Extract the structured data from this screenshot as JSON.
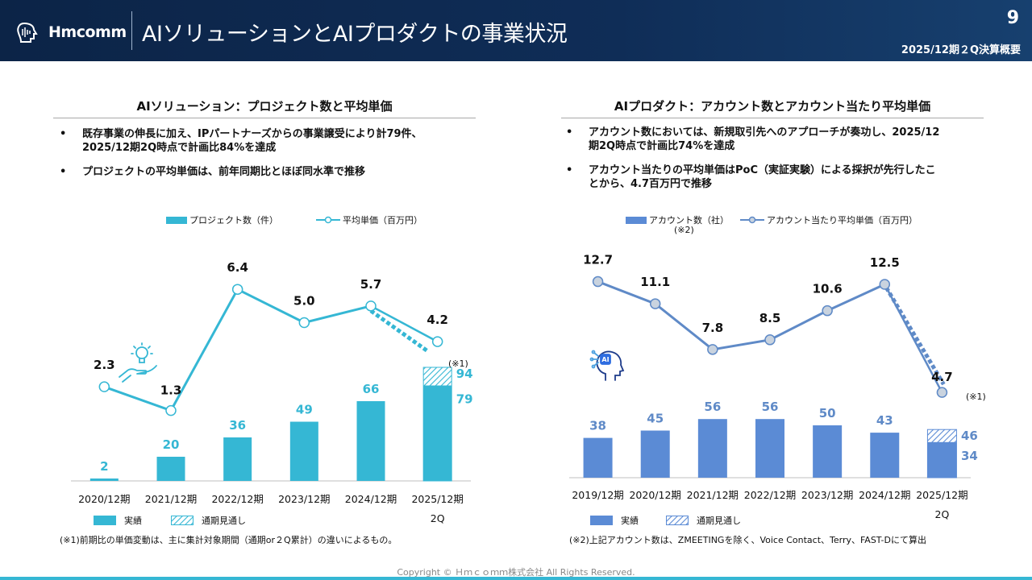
{
  "header": {
    "logo_text": "Hmcomm",
    "title": "AIソリューションとAIプロダクトの事業状況",
    "page_number": "9",
    "subtitle": "2025/12期２Q決算概要"
  },
  "left": {
    "title": "AIソリューション：プロジェクト数と平均単価",
    "bullets": [
      {
        "marker": "•",
        "lines": [
          "既存事業の伸長に加え、IPパートナーズからの事業譲受により計79件、",
          "2025/12期2Q時点で計画比84%を達成"
        ]
      },
      {
        "marker": "•",
        "lines": [
          "プロジェクトの平均単価は、前年同期比とほぼ同水準で推移"
        ]
      }
    ],
    "legend_bar": "プロジェクト数（件）",
    "legend_line": "平均単価（百万円）",
    "legend_actual": "実績",
    "legend_forecast": "通期見通し",
    "note": "(※1)前期比の単価変動は、主に集計対象期間（通期or２Q累計）の違いによるもの。",
    "marker_note": "(※1)",
    "period_sublabel": "2Q"
  },
  "right": {
    "title": "AIプロダクト：アカウント数とアカウント当たり平均単価",
    "bullets": [
      {
        "marker": "•",
        "lines": [
          "アカウント数においては、新規取引先へのアプローチが奏功し、2025/12",
          "期2Q時点で計画比74%を達成"
        ]
      },
      {
        "marker": "•",
        "lines": [
          "アカウント当たりの平均単価はPoC（実証実験）による採択が先行したこ",
          "とから、4.7百万円で推移"
        ]
      }
    ],
    "legend_bar": "アカウント数（社）",
    "legend_bar_sub": "(※2)",
    "legend_line": "アカウント当たり平均単価（百万円）",
    "legend_actual": "実績",
    "legend_forecast": "通期見通し",
    "note": "(※2)上記アカウント数は、ZMEETINGを除く、Voice Contact、Terry、FAST-Dにて算出",
    "marker_note": "(※1)",
    "period_sublabel": "2Q"
  },
  "footer": "Copyright © Ｈｍｃｏｍｍ株式会社 All Rights Reserved.",
  "colors": {
    "teal": "#35b7d4",
    "blue": "#5b8bd5",
    "line_blue": "#5f8ac7",
    "navy": "#0f2d57"
  },
  "icons": [
    "logo-icon",
    "lightbulb-hand-icon",
    "ai-head-icon"
  ],
  "chart_data": [
    {
      "type": "bar",
      "categories": [
        "2020/12期",
        "2021/12期",
        "2022/12期",
        "2023/12期",
        "2024/12期",
        "2025/12期"
      ],
      "series": [
        {
          "name": "プロジェクト数（件）",
          "type": "bar",
          "values": [
            2,
            20,
            36,
            49,
            66,
            79
          ],
          "labels": [
            "2",
            "20",
            "36",
            "49",
            "66",
            "79"
          ]
        },
        {
          "name": "通期見通し",
          "type": "bar",
          "values": [
            null,
            null,
            null,
            null,
            null,
            94
          ],
          "labels": [
            "",
            "",
            "",
            "",
            "",
            "94"
          ]
        },
        {
          "name": "平均単価（百万円）",
          "type": "line",
          "values": [
            2.3,
            1.3,
            6.4,
            5.0,
            5.7,
            4.2
          ],
          "labels": [
            "2.3",
            "1.3",
            "6.4",
            "5.0",
            "5.7",
            "4.2"
          ]
        }
      ]
    },
    {
      "type": "bar",
      "categories": [
        "2019/12期",
        "2020/12期",
        "2021/12期",
        "2022/12期",
        "2023/12期",
        "2024/12期",
        "2025/12期"
      ],
      "series": [
        {
          "name": "アカウント数（社）",
          "type": "bar",
          "values": [
            38,
            45,
            56,
            56,
            50,
            43,
            34
          ],
          "labels": [
            "38",
            "45",
            "56",
            "56",
            "50",
            "43",
            "34"
          ]
        },
        {
          "name": "通期見通し",
          "type": "bar",
          "values": [
            null,
            null,
            null,
            null,
            null,
            null,
            46
          ],
          "labels": [
            "",
            "",
            "",
            "",
            "",
            "",
            "46"
          ]
        },
        {
          "name": "アカウント当たり平均単価（百万円）",
          "type": "line",
          "values": [
            12.7,
            11.1,
            7.8,
            8.5,
            10.6,
            12.5,
            4.7
          ],
          "labels": [
            "12.7",
            "11.1",
            "7.8",
            "8.5",
            "10.6",
            "12.5",
            "4.7"
          ]
        }
      ]
    }
  ]
}
